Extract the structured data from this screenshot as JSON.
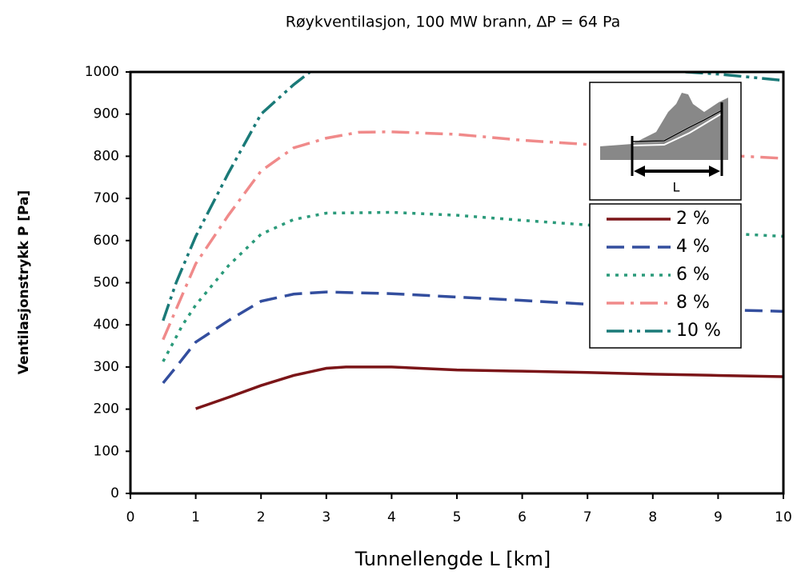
{
  "chart_data": {
    "type": "line",
    "title": "Røykventilasjon, 100 MW brann, ∆P = 64 Pa",
    "x_label": "Tunnellengde L [km]",
    "y_label": "Ventilasjonstrykk P [Pa]",
    "inset_label": "L",
    "xlim": [
      0,
      10
    ],
    "ylim": [
      0,
      1000
    ],
    "xticks": [
      0,
      1,
      2,
      3,
      4,
      5,
      6,
      7,
      8,
      9,
      10
    ],
    "yticks": [
      0,
      100,
      200,
      300,
      400,
      500,
      600,
      700,
      800,
      900,
      1000
    ],
    "series": [
      {
        "name": "2 %",
        "color": "#7b1518",
        "dash": "none",
        "x": [
          1,
          1.5,
          2,
          2.5,
          3,
          3.3,
          4,
          5,
          6,
          7,
          8,
          9,
          10
        ],
        "values": [
          201,
          228,
          256,
          280,
          297,
          300,
          300,
          293,
          290,
          287,
          283,
          280,
          277
        ]
      },
      {
        "name": "4 %",
        "color": "#334e9e",
        "dash": "22 10",
        "x": [
          0.5,
          0.7,
          1,
          1.5,
          2,
          2.5,
          3,
          4,
          5,
          6,
          7,
          8,
          9,
          10
        ],
        "values": [
          262,
          300,
          359,
          410,
          456,
          473,
          478,
          474,
          466,
          458,
          449,
          441,
          436,
          432
        ]
      },
      {
        "name": "6 %",
        "color": "#2a9a7a",
        "dash": "4 7",
        "x": [
          0.5,
          0.8,
          1,
          1.5,
          2,
          2.5,
          3,
          4,
          5,
          6,
          7,
          8,
          9,
          10
        ],
        "values": [
          313,
          400,
          447,
          540,
          615,
          650,
          665,
          667,
          660,
          648,
          637,
          628,
          618,
          610
        ]
      },
      {
        "name": "8 %",
        "color": "#f08a8a",
        "dash": "22 8 4 8",
        "x": [
          0.5,
          1,
          1.5,
          2,
          2.5,
          3,
          3.5,
          4,
          5,
          6,
          7,
          8,
          9,
          10
        ],
        "values": [
          365,
          545,
          660,
          765,
          820,
          843,
          857,
          858,
          852,
          838,
          828,
          815,
          803,
          795
        ]
      },
      {
        "name": "10 %",
        "color": "#1a7a78",
        "dash": "22 6 4 6 4 6",
        "x": [
          0.5,
          0.7,
          1,
          1.5,
          2,
          2.5,
          2.75,
          5.5,
          8.5,
          9,
          10
        ],
        "values": [
          410,
          500,
          610,
          760,
          900,
          970,
          1000,
          null,
          1000,
          995,
          980
        ]
      }
    ]
  }
}
